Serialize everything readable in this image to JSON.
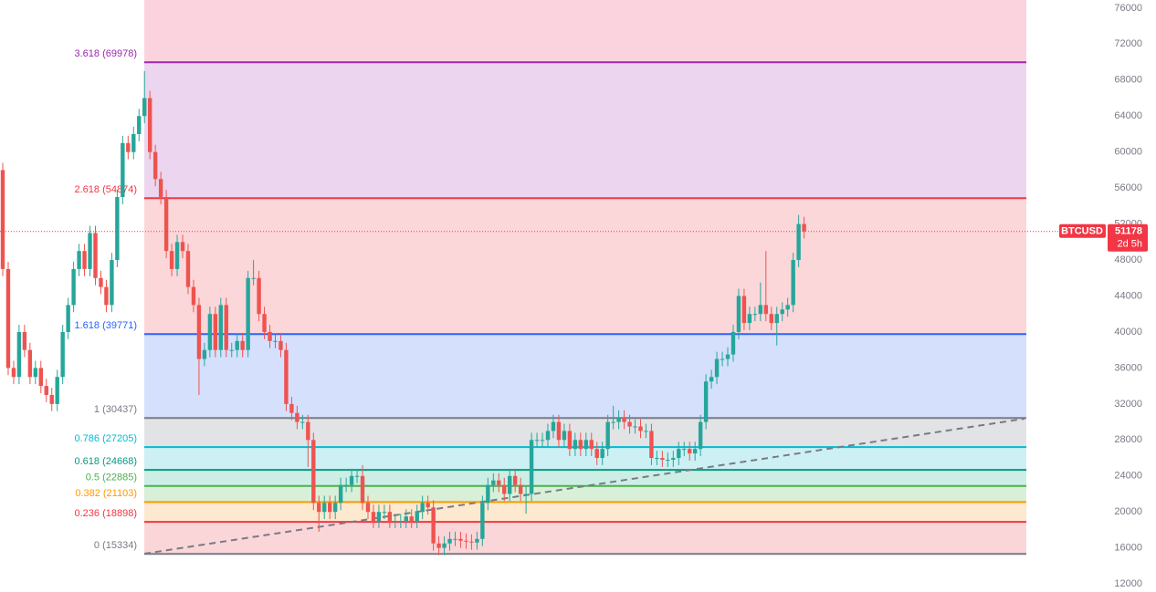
{
  "chart_data": {
    "type": "candlestick",
    "symbol": "BTCUSD",
    "last_price": 51178,
    "countdown": "2d 5h",
    "up_color": "#26a69a",
    "down_color": "#ef5350",
    "ylim": [
      11100,
      76900
    ],
    "yticks": [
      12000,
      16000,
      20000,
      24000,
      28000,
      32000,
      36000,
      40000,
      44000,
      48000,
      52000,
      56000,
      60000,
      64000,
      68000,
      72000,
      76000
    ],
    "fib_levels": [
      {
        "label": "0 (15334)",
        "value": 15334,
        "color": "#787b86",
        "fill": "#fbd6d8"
      },
      {
        "label": "0.236 (18898)",
        "value": 18898,
        "color": "#f23645",
        "fill": "#fde9cf"
      },
      {
        "label": "0.382 (21103)",
        "value": 21103,
        "color": "#ff9800",
        "fill": "#d8f0d8"
      },
      {
        "label": "0.5 (22885)",
        "value": 22885,
        "color": "#4caf50",
        "fill": "#cdeee4"
      },
      {
        "label": "0.618 (24668)",
        "value": 24668,
        "color": "#089981",
        "fill": "#cdf0f4"
      },
      {
        "label": "0.786 (27205)",
        "value": 27205,
        "color": "#00bcd4",
        "fill": "#e2e3e5"
      },
      {
        "label": "1 (30437)",
        "value": 30437,
        "color": "#787b86",
        "fill": "#d5e0fd"
      },
      {
        "label": "1.618 (39771)",
        "value": 39771,
        "color": "#2962ff",
        "fill": "#fbd7da"
      },
      {
        "label": "2.618 (54874)",
        "value": 54874,
        "color": "#f23645",
        "fill": "#ecd5ee"
      },
      {
        "label": "3.618 (69978)",
        "value": 69978,
        "color": "#9c27b0",
        "fill": "#fbd3df"
      }
    ],
    "open": [
      58000,
      47000,
      36000,
      35000,
      40000,
      38000,
      35000,
      36000,
      34000,
      33000,
      32000,
      35000,
      40000,
      43000,
      47000,
      49000,
      47000,
      51000,
      46000,
      45000,
      43000,
      48000,
      55000,
      61000,
      60000,
      62000,
      64000,
      66000,
      60000,
      57000,
      55000,
      49000,
      47000,
      50000,
      49000,
      45000,
      43000,
      37000,
      38000,
      42000,
      38000,
      43000,
      38000,
      38000,
      39000,
      38000,
      46000,
      46000,
      42000,
      40000,
      39000,
      39000,
      38000,
      32000,
      31000,
      30000,
      30000,
      28000,
      21000,
      20000,
      21000,
      20000,
      21000,
      23000,
      23000,
      24000,
      24000,
      21000,
      20000,
      19000,
      20000,
      20000,
      19000,
      19000,
      19000,
      19500,
      19000,
      20000,
      21000,
      20500,
      16500,
      16000,
      16500,
      17000,
      17000,
      16800,
      16700,
      16600,
      17000,
      21000,
      23000,
      23500,
      23000,
      22000,
      24000,
      23000,
      22000,
      22000,
      28000,
      28000,
      28000,
      29000,
      30000,
      28000,
      29000,
      27000,
      28000,
      27000,
      28000,
      27000,
      26000,
      27000,
      30000,
      30000,
      30500,
      30000,
      29500,
      29500,
      29000,
      29000,
      26000,
      26000,
      25800,
      25800,
      26000,
      27000,
      27000,
      26500,
      27000,
      30000,
      34500,
      35000,
      37000,
      37000,
      37500,
      40000,
      44000,
      41000,
      42000,
      42000,
      43000,
      42000,
      41000,
      42000,
      42500,
      43000,
      48000,
      52000
    ],
    "high": [
      58800,
      47800,
      36800,
      40800,
      40800,
      38800,
      36800,
      36800,
      34800,
      33800,
      35800,
      40800,
      43800,
      47800,
      49800,
      49800,
      51800,
      51800,
      46800,
      45800,
      48800,
      55800,
      61800,
      61800,
      62800,
      64800,
      69000,
      66800,
      60800,
      57800,
      55800,
      49800,
      50800,
      50800,
      49800,
      45800,
      43800,
      38800,
      42800,
      42800,
      43800,
      43800,
      38800,
      39800,
      39800,
      46800,
      48000,
      46800,
      42800,
      40800,
      39800,
      39800,
      38800,
      32800,
      31800,
      30800,
      30800,
      28800,
      21800,
      21800,
      21800,
      21800,
      23800,
      23800,
      24800,
      24800,
      25200,
      21800,
      20800,
      20800,
      20800,
      20800,
      19800,
      19800,
      20300,
      20300,
      20800,
      21800,
      21800,
      21300,
      17300,
      17300,
      17800,
      17800,
      17800,
      17600,
      17500,
      17800,
      21800,
      23800,
      24300,
      24300,
      23800,
      24800,
      24800,
      23800,
      22800,
      28800,
      28800,
      28800,
      29800,
      30800,
      30800,
      29800,
      29800,
      28800,
      28800,
      28800,
      28800,
      27800,
      27800,
      30800,
      31800,
      31300,
      31300,
      30800,
      30300,
      30300,
      29800,
      29800,
      26800,
      26800,
      26600,
      26800,
      27800,
      27800,
      27800,
      27800,
      30800,
      35300,
      35800,
      37800,
      37800,
      38300,
      40800,
      44800,
      44800,
      42800,
      42800,
      45500,
      49000,
      42800,
      42800,
      43300,
      43800,
      48800,
      53000,
      52800
    ],
    "low": [
      46200,
      35200,
      34200,
      34200,
      37200,
      34200,
      34200,
      33200,
      32200,
      31200,
      31200,
      34200,
      39200,
      42200,
      46200,
      46200,
      46200,
      45200,
      44200,
      42200,
      42200,
      47200,
      54200,
      59200,
      59200,
      61200,
      63200,
      59200,
      56200,
      54200,
      48200,
      46200,
      46200,
      48200,
      44200,
      42200,
      33000,
      36200,
      37200,
      37200,
      37200,
      37200,
      37200,
      37200,
      37200,
      37200,
      45200,
      41200,
      39200,
      38200,
      38200,
      37200,
      31200,
      30200,
      29200,
      29200,
      25000,
      20200,
      17800,
      19200,
      19200,
      19200,
      20200,
      22200,
      22200,
      23200,
      20200,
      19200,
      18200,
      18200,
      19200,
      18200,
      18200,
      18200,
      18200,
      18200,
      18200,
      19200,
      19700,
      15700,
      15200,
      15200,
      15700,
      16200,
      16000,
      15900,
      15800,
      15800,
      16200,
      20200,
      22200,
      22200,
      21200,
      21200,
      22200,
      21200,
      19800,
      21200,
      27200,
      27200,
      27200,
      28200,
      27200,
      27200,
      26200,
      26200,
      26200,
      26200,
      26200,
      25200,
      25200,
      26200,
      29200,
      29200,
      29200,
      28700,
      28700,
      28200,
      28200,
      25200,
      25200,
      25000,
      25000,
      25000,
      25200,
      26200,
      25700,
      25700,
      26200,
      29200,
      33700,
      34200,
      36200,
      36200,
      36700,
      39200,
      40200,
      40200,
      41200,
      41200,
      41200,
      40200,
      38500,
      41200,
      41700,
      42200,
      47200,
      50400
    ],
    "close": [
      47000,
      36000,
      35000,
      40000,
      38000,
      35000,
      36000,
      34000,
      33000,
      32000,
      35000,
      40000,
      43000,
      47000,
      49000,
      47000,
      51000,
      46000,
      45000,
      43000,
      48000,
      55000,
      61000,
      60000,
      62000,
      64000,
      66000,
      60000,
      57000,
      55000,
      49000,
      47000,
      50000,
      49000,
      45000,
      43000,
      37000,
      38000,
      42000,
      38000,
      43000,
      38000,
      38000,
      39000,
      38000,
      46000,
      46000,
      42000,
      40000,
      39000,
      39000,
      38000,
      32000,
      31000,
      30000,
      30000,
      28000,
      21000,
      20000,
      21000,
      20000,
      21000,
      23000,
      23000,
      24000,
      24000,
      21000,
      20000,
      19000,
      20000,
      20000,
      19000,
      19000,
      19000,
      19500,
      19000,
      20000,
      21000,
      20500,
      16500,
      16000,
      16500,
      17000,
      17000,
      16800,
      16700,
      16600,
      17000,
      21000,
      23000,
      23500,
      23000,
      22000,
      24000,
      23000,
      22000,
      22000,
      28000,
      28000,
      28000,
      29000,
      30000,
      28000,
      29000,
      27000,
      28000,
      27000,
      28000,
      27000,
      26000,
      27000,
      30000,
      30000,
      30500,
      30000,
      29500,
      29500,
      29000,
      29000,
      26000,
      26000,
      25800,
      25800,
      26000,
      27000,
      27000,
      26500,
      27000,
      30000,
      34500,
      35000,
      37000,
      37000,
      37500,
      40000,
      44000,
      41000,
      42000,
      42000,
      43000,
      42000,
      41000,
      42000,
      42500,
      43000,
      48000,
      52000,
      51178
    ]
  }
}
